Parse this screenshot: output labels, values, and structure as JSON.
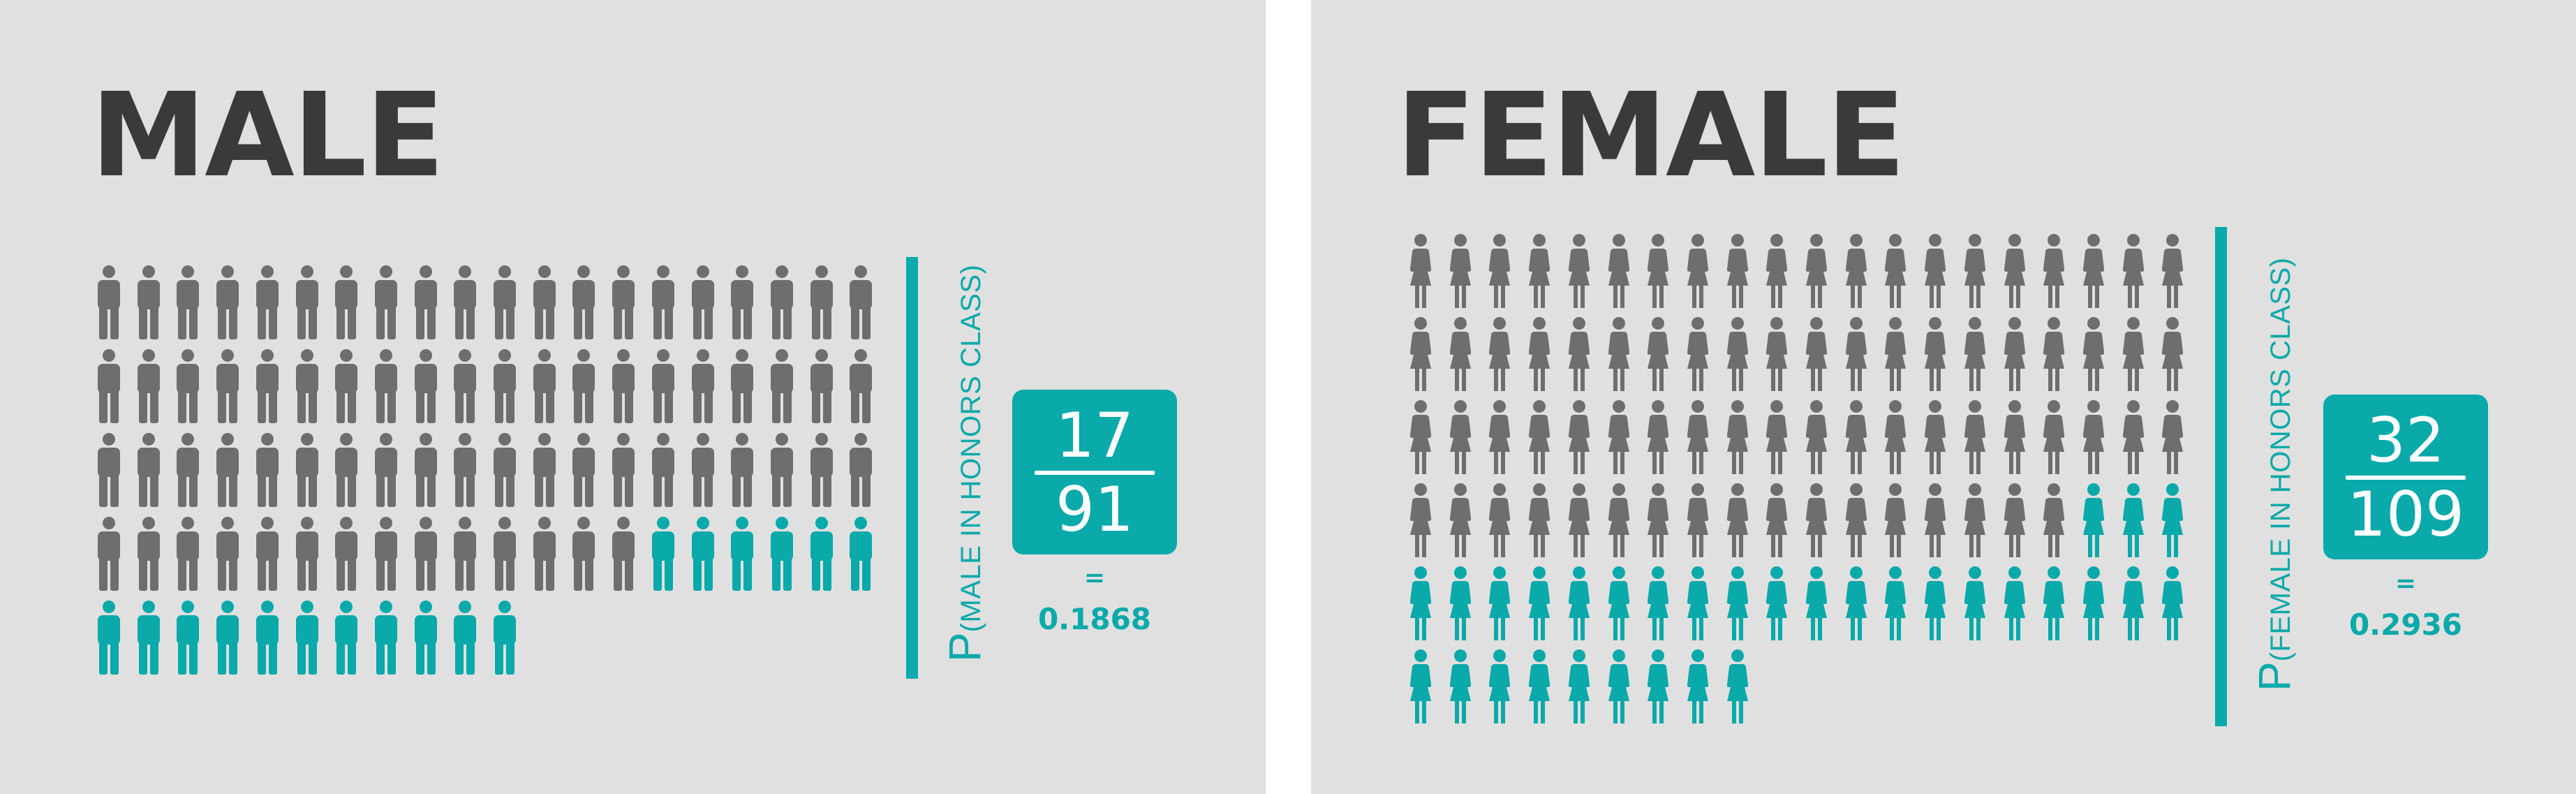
{
  "colors": {
    "background": "#e0e0e0",
    "outer_background": "#ffffff",
    "title": "#3a3a3a",
    "icon_gray": "#6e6e6e",
    "accent_teal": "#0aa9aa"
  },
  "panels": {
    "male": {
      "title": "MALE",
      "icon": "male-person-icon",
      "total": 91,
      "highlighted": 17,
      "label": {
        "p": "P",
        "condition": "(MALE IN HONORS CLASS)"
      },
      "fraction": {
        "numerator": "17",
        "denominator": "91"
      },
      "equals": "=",
      "result": "0.1868"
    },
    "female": {
      "title": "FEMALE",
      "icon": "female-person-icon",
      "total": 109,
      "highlighted": 32,
      "label": {
        "p": "P",
        "condition": "(FEMALE IN HONORS CLASS)"
      },
      "fraction": {
        "numerator": "32",
        "denominator": "109"
      },
      "equals": "=",
      "result": "0.2936"
    }
  }
}
